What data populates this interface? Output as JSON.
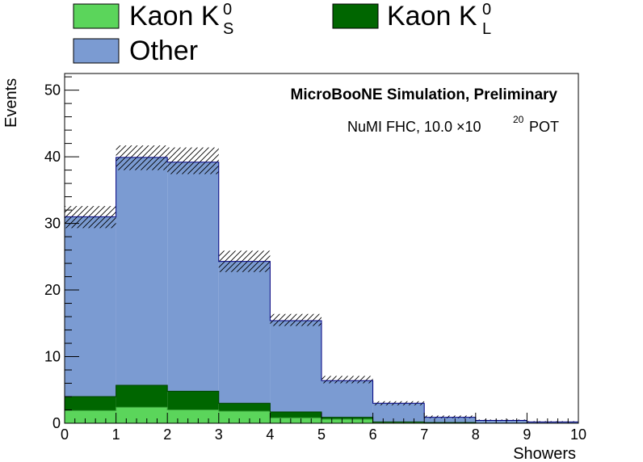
{
  "chart_data": {
    "type": "bar",
    "stacked": true,
    "bin_edges": [
      0,
      1,
      2,
      3,
      4,
      5,
      6,
      7,
      8,
      9,
      10
    ],
    "xlabel": "Showers",
    "ylabel": "Events",
    "xlim": [
      0,
      10
    ],
    "ylim": [
      0,
      52.5
    ],
    "x_ticks": [
      "0",
      "1",
      "2",
      "3",
      "4",
      "5",
      "6",
      "7",
      "8",
      "9",
      "10"
    ],
    "y_ticks": [
      "0",
      "10",
      "20",
      "30",
      "40",
      "50"
    ],
    "grid": false,
    "legend_position": "top-left",
    "series": [
      {
        "name": "Kaon K",
        "name_sup": "0",
        "name_sub": "S",
        "color": "#5bd55b",
        "values": [
          1.9,
          2.4,
          2.0,
          1.8,
          0.8,
          0.6,
          0.1,
          0.05,
          0.0,
          0.0
        ]
      },
      {
        "name": "Kaon K",
        "name_sup": "0",
        "name_sub": "L",
        "color": "#006600",
        "values": [
          2.1,
          3.3,
          2.8,
          1.2,
          0.9,
          0.3,
          0.1,
          0.05,
          0.02,
          0.0
        ]
      },
      {
        "name": "Other",
        "color": "#7b9bd2",
        "values": [
          27.0,
          34.2,
          34.4,
          21.3,
          13.7,
          5.5,
          2.8,
          0.8,
          0.4,
          0.2
        ]
      }
    ],
    "uncertainty_band": {
      "style": "hatched",
      "low": [
        29.3,
        38.0,
        37.4,
        22.7,
        14.6,
        6.0,
        2.7,
        0.75,
        0.35,
        0.15
      ],
      "high": [
        32.6,
        41.7,
        41.4,
        25.9,
        16.4,
        7.1,
        3.3,
        1.15,
        0.55,
        0.3
      ]
    },
    "annotations": {
      "title": "MicroBooNE Simulation, Preliminary",
      "pot_prefix": "NuMI FHC, 10.0",
      "pot_times": "×10",
      "pot_exp": "20",
      "pot_unit": "POT"
    }
  }
}
